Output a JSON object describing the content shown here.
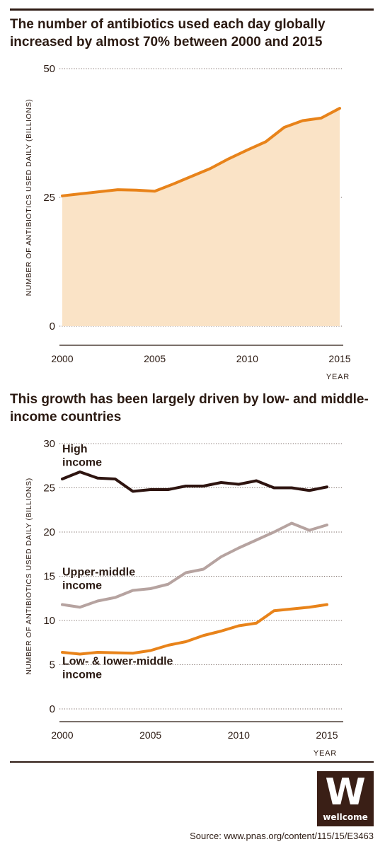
{
  "chart_data": [
    {
      "type": "area",
      "title": "The number of antibiotics used each day globally increased by almost 70% between 2000 and 2015",
      "xlabel": "YEAR",
      "ylabel": "NUMBER OF ANTIBIOTICS USED DAILY (BILLIONS)",
      "ylim": [
        0,
        50
      ],
      "xlim": [
        2000,
        2015
      ],
      "yticks": [
        "50",
        "25",
        "0"
      ],
      "xticks": [
        "2000",
        "2005",
        "2010",
        "2015"
      ],
      "grid": "horizontal dotted",
      "series": [
        {
          "color": "#e8831a",
          "fill": "#fae3c6",
          "x": [
            2000,
            2001,
            2002,
            2003,
            2004,
            2005,
            2006,
            2007,
            2008,
            2009,
            2010,
            2011,
            2012,
            2013,
            2014,
            2015
          ],
          "y": [
            25.3,
            25.7,
            26.1,
            26.5,
            26.4,
            26.2,
            27.6,
            29.1,
            30.6,
            32.5,
            34.2,
            35.8,
            38.6,
            39.9,
            40.4,
            42.3
          ]
        }
      ]
    },
    {
      "type": "line",
      "title": "This growth has been largely driven by low- and middle-income countries",
      "xlabel": "YEAR",
      "ylabel": "NUMBER OF ANTIBIOTICS USED DAILY (BILLIONS)",
      "ylim": [
        0,
        30
      ],
      "xlim": [
        2000,
        2015
      ],
      "yticks": [
        "30",
        "25",
        "20",
        "15",
        "10",
        "5",
        "0"
      ],
      "xticks": [
        "2000",
        "2005",
        "2010",
        "2015"
      ],
      "grid": "horizontal dotted",
      "x": [
        2000,
        2001,
        2002,
        2003,
        2004,
        2005,
        2006,
        2007,
        2008,
        2009,
        2010,
        2011,
        2012,
        2013,
        2014,
        2015
      ],
      "series": [
        {
          "name": "High income",
          "label_lines": [
            "High",
            "income"
          ],
          "color": "#2e1410",
          "values": [
            26.0,
            26.8,
            26.1,
            26.0,
            24.6,
            24.8,
            24.8,
            25.2,
            25.2,
            25.6,
            25.4,
            25.8,
            25.0,
            25.0,
            24.7,
            25.1
          ]
        },
        {
          "name": "Upper-middle income",
          "label_lines": [
            "Upper-middle",
            "income"
          ],
          "color": "#b6a3a0",
          "values": [
            11.8,
            11.5,
            12.2,
            12.6,
            13.4,
            13.6,
            14.1,
            15.4,
            15.8,
            17.2,
            18.2,
            19.1,
            20.0,
            21.0,
            20.2,
            20.8
          ]
        },
        {
          "name": "Low- & lower-middle income",
          "label_lines": [
            "Low- & lower-middle",
            "income"
          ],
          "color": "#e8831a",
          "values": [
            6.4,
            6.2,
            6.4,
            6.35,
            6.3,
            6.6,
            7.2,
            7.6,
            8.3,
            8.8,
            9.4,
            9.7,
            11.1,
            11.3,
            11.5,
            11.8
          ]
        }
      ]
    }
  ],
  "footer": {
    "source": "Source: www.pnas.org/content/115/15/E3463",
    "logo_letter": "W",
    "logo_text": "wellcome"
  }
}
